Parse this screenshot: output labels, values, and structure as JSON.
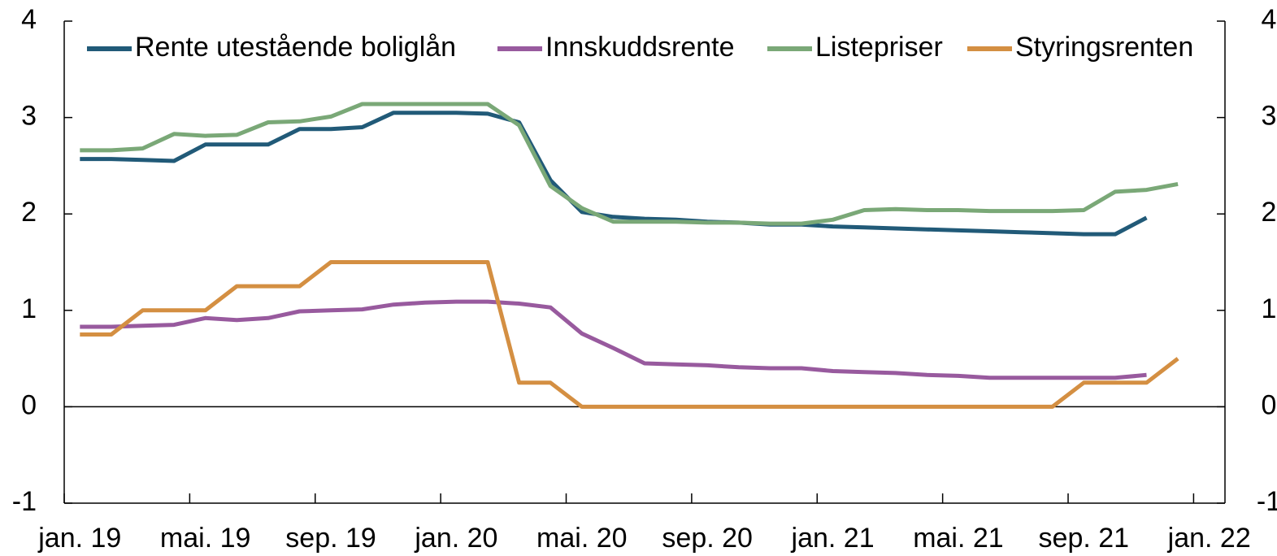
{
  "chart_data": {
    "type": "line",
    "categories": [
      "jan. 19",
      null,
      null,
      null,
      "mai. 19",
      null,
      null,
      null,
      "sep. 19",
      null,
      null,
      null,
      "jan. 20",
      null,
      null,
      null,
      "mai. 20",
      null,
      null,
      null,
      "sep. 20",
      null,
      null,
      null,
      "jan. 21",
      null,
      null,
      null,
      "mai. 21",
      null,
      null,
      null,
      "sep. 21",
      null,
      null,
      null,
      "jan. 22"
    ],
    "series": [
      {
        "name": "Rente utestående boliglån",
        "color": "#215a78",
        "values": [
          2.57,
          2.57,
          2.56,
          2.55,
          2.72,
          2.72,
          2.72,
          2.88,
          2.88,
          2.9,
          3.05,
          3.05,
          3.05,
          3.04,
          2.95,
          2.35,
          2.02,
          1.97,
          1.95,
          1.94,
          1.92,
          1.91,
          1.89,
          1.89,
          1.87,
          1.86,
          1.85,
          1.84,
          1.83,
          1.82,
          1.81,
          1.8,
          1.79,
          1.79,
          1.96,
          null,
          null
        ]
      },
      {
        "name": "Innskuddsrente",
        "color": "#985a9e",
        "values": [
          0.83,
          0.83,
          0.84,
          0.85,
          0.92,
          0.9,
          0.92,
          0.99,
          1.0,
          1.01,
          1.06,
          1.08,
          1.09,
          1.09,
          1.07,
          1.03,
          0.76,
          0.61,
          0.45,
          0.44,
          0.43,
          0.41,
          0.4,
          0.4,
          0.37,
          0.36,
          0.35,
          0.33,
          0.32,
          0.3,
          0.3,
          0.3,
          0.3,
          0.3,
          0.33,
          null,
          null
        ]
      },
      {
        "name": "Listepriser",
        "color": "#7aa877",
        "values": [
          2.66,
          2.66,
          2.68,
          2.83,
          2.81,
          2.82,
          2.95,
          2.96,
          3.01,
          3.14,
          3.14,
          3.14,
          3.14,
          3.14,
          2.92,
          2.29,
          2.06,
          1.92,
          1.92,
          1.92,
          1.91,
          1.91,
          1.9,
          1.9,
          1.94,
          2.04,
          2.05,
          2.04,
          2.04,
          2.03,
          2.03,
          2.03,
          2.04,
          2.23,
          2.25,
          2.31,
          null
        ]
      },
      {
        "name": "Styringsrenten",
        "color": "#d48f42",
        "values": [
          0.75,
          0.75,
          1,
          1,
          1,
          1.25,
          1.25,
          1.25,
          1.5,
          1.5,
          1.5,
          1.5,
          1.5,
          1.5,
          0.25,
          0.25,
          0,
          0,
          0,
          0,
          0,
          0,
          0,
          0,
          0,
          0,
          0,
          0,
          0,
          0,
          0,
          0,
          0.25,
          0.25,
          0.25,
          0.5,
          null
        ]
      }
    ],
    "ylim": [
      -1,
      4
    ],
    "yticks": [
      -1,
      0,
      1,
      2,
      3,
      4
    ],
    "y2lim": [
      -1,
      4
    ],
    "y2ticks": [
      -1,
      0,
      1,
      2,
      3,
      4
    ],
    "legend": "top"
  }
}
